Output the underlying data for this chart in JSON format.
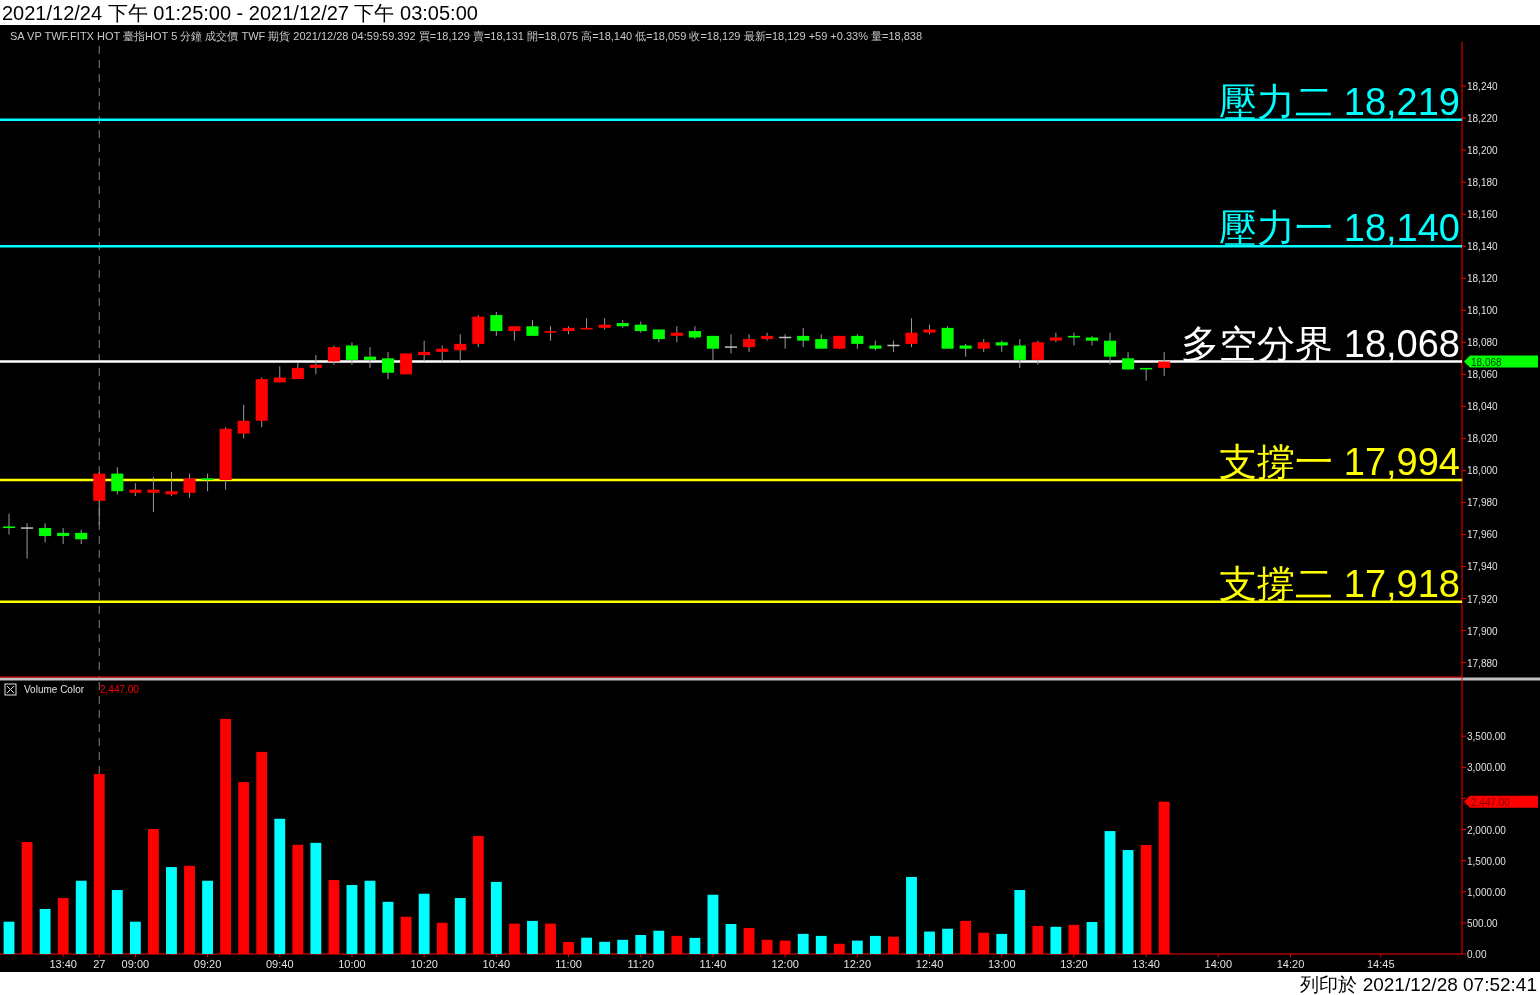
{
  "chart_data": [
    {
      "type": "candlestick",
      "title": "2021/12/24 下午 01:25:00 - 2021/12/27 下午 03:05:00",
      "subtitle": "SA  VP  TWF.FITX HOT  臺指HOT 5 分鐘  成交價  TWF  期貨  2021/12/28 04:59:59.392  買=18,129  賣=18,131  開=18,075  高=18,140  低=18,059  收=18,129  最新=18,129  +59  +0.33%  量=18,838",
      "categories": [
        null,
        null,
        null,
        null,
        null,
        null,
        null,
        null,
        null,
        null,
        null,
        null,
        null,
        null,
        null,
        null,
        null,
        null,
        null,
        null,
        null,
        null,
        null,
        null,
        null,
        null,
        null,
        null,
        null,
        null,
        null,
        null,
        null,
        null,
        null,
        null,
        null,
        null,
        null,
        null,
        null,
        null,
        null,
        null,
        null,
        null,
        null,
        null,
        null,
        null,
        null,
        null,
        null,
        null,
        null,
        null,
        null,
        null,
        null,
        null,
        null,
        null,
        null,
        null,
        null,
        null,
        null,
        null,
        null,
        null,
        null,
        null,
        null,
        null,
        null,
        null,
        null,
        null,
        null,
        null,
        null
      ],
      "ohlc": [
        [
          17965,
          17973,
          17960,
          17964
        ],
        [
          17964,
          17967,
          17945,
          17964
        ],
        [
          17964,
          17967,
          17955,
          17959
        ],
        [
          17961,
          17964,
          17954,
          17959
        ],
        [
          17961,
          17963,
          17954,
          17957
        ],
        [
          17981,
          17999,
          17966,
          17998
        ],
        [
          17998,
          18002,
          17985,
          17987
        ],
        [
          17986,
          17992,
          17984,
          17988
        ],
        [
          17986,
          17996,
          17974,
          17988
        ],
        [
          17985,
          17999,
          17984,
          17987
        ],
        [
          17986,
          17998,
          17983,
          17995
        ],
        [
          17995,
          17998,
          17987,
          17994
        ],
        [
          17994,
          18027,
          17988,
          18026
        ],
        [
          18023,
          18041,
          18020,
          18031
        ],
        [
          18031,
          18058,
          18027,
          18057
        ],
        [
          18055,
          18065,
          18055,
          18058
        ],
        [
          18057,
          18067,
          18057,
          18064
        ],
        [
          18064,
          18072,
          18060,
          18066
        ],
        [
          18068,
          18078,
          18066,
          18077
        ],
        [
          18078,
          18080,
          18066,
          18069
        ],
        [
          18071,
          18077,
          18064,
          18069
        ],
        [
          18070,
          18074,
          18057,
          18061
        ],
        [
          18060,
          18073,
          18060,
          18073
        ],
        [
          18072,
          18081,
          18068,
          18074
        ],
        [
          18074,
          18078,
          18068,
          18076
        ],
        [
          18075,
          18085,
          18068,
          18079
        ],
        [
          18079,
          18097,
          18077,
          18096
        ],
        [
          18097,
          18099,
          18084,
          18087
        ],
        [
          18087,
          18090,
          18081,
          18090
        ],
        [
          18090,
          18094,
          18084,
          18084
        ],
        [
          18086,
          18090,
          18081,
          18087
        ],
        [
          18087,
          18090,
          18085,
          18089
        ],
        [
          18088,
          18095,
          18088,
          18089
        ],
        [
          18089,
          18095,
          18088,
          18091
        ],
        [
          18092,
          18094,
          18089,
          18090
        ],
        [
          18091,
          18093,
          18086,
          18087
        ],
        [
          18088,
          18088,
          18080,
          18082
        ],
        [
          18084,
          18090,
          18080,
          18086
        ],
        [
          18087,
          18090,
          18082,
          18083
        ],
        [
          18084,
          18084,
          18069,
          18076
        ],
        [
          18077,
          18085,
          18073,
          18077
        ],
        [
          18077,
          18085,
          18074,
          18082
        ],
        [
          18082,
          18086,
          18081,
          18084
        ],
        [
          18083,
          18085,
          18076,
          18083
        ],
        [
          18084,
          18089,
          18077,
          18081
        ],
        [
          18082,
          18085,
          18076,
          18076
        ],
        [
          18076,
          18084,
          18076,
          18084
        ],
        [
          18084,
          18085,
          18076,
          18079
        ],
        [
          18078,
          18081,
          18075,
          18076
        ],
        [
          18078,
          18081,
          18074,
          18078
        ],
        [
          18079,
          18095,
          18077,
          18086
        ],
        [
          18086,
          18091,
          18085,
          18088
        ],
        [
          18089,
          18090,
          18076,
          18076
        ],
        [
          18078,
          18079,
          18071,
          18076
        ],
        [
          18076,
          18082,
          18074,
          18080
        ],
        [
          18080,
          18081,
          18074,
          18078
        ],
        [
          18078,
          18082,
          18064,
          18069
        ],
        [
          18069,
          18081,
          18066,
          18080
        ],
        [
          18081,
          18086,
          18080,
          18083
        ],
        [
          18084,
          18086,
          18078,
          18083
        ],
        [
          18083,
          18084,
          18078,
          18081
        ],
        [
          18081,
          18086,
          18066,
          18071
        ],
        [
          18070,
          18074,
          18063,
          18063
        ],
        [
          18064,
          18064,
          18056,
          18063
        ],
        [
          18064,
          18074,
          18059,
          18068
        ],
        null,
        null,
        null,
        null,
        null,
        null,
        null,
        null,
        null,
        null,
        null,
        null,
        null,
        null,
        null,
        null
      ],
      "ylim": [
        17871,
        18265
      ],
      "yticks": [
        {
          "value": 17880,
          "label": "17,880"
        },
        {
          "value": 17900,
          "label": "17,900"
        },
        {
          "value": 17920,
          "label": "17,920"
        },
        {
          "value": 17940,
          "label": "17,940"
        },
        {
          "value": 17960,
          "label": "17,960"
        },
        {
          "value": 17980,
          "label": "17,980"
        },
        {
          "value": 18000,
          "label": "18,000"
        },
        {
          "value": 18020,
          "label": "18,020"
        },
        {
          "value": 18040,
          "label": "18,040"
        },
        {
          "value": 18060,
          "label": "18,060"
        },
        {
          "value": 18080,
          "label": "18,080"
        },
        {
          "value": 18100,
          "label": "18,100"
        },
        {
          "value": 18120,
          "label": "18,120"
        },
        {
          "value": 18140,
          "label": "18,140"
        },
        {
          "value": 18160,
          "label": "18,160"
        },
        {
          "value": 18180,
          "label": "18,180"
        },
        {
          "value": 18200,
          "label": "18,200"
        },
        {
          "value": 18220,
          "label": "18,220"
        },
        {
          "value": 18240,
          "label": "18,240"
        }
      ],
      "ref_lines": [
        {
          "axis": "y",
          "value": 18219,
          "label": "壓力二 18,219",
          "color": "#00ffff"
        },
        {
          "axis": "y",
          "value": 18140,
          "label": "壓力一 18,140",
          "color": "#00ffff"
        },
        {
          "axis": "y",
          "value": 18068,
          "label": "多空分界 18,068",
          "color": "#ffffff"
        },
        {
          "axis": "y",
          "value": 17994,
          "label": "支撐一 17,994",
          "color": "#ffff00"
        },
        {
          "axis": "y",
          "value": 17918,
          "label": "支撐二 17,918",
          "color": "#ffff00"
        },
        {
          "axis": "x",
          "value": "27",
          "color": "#808080",
          "line_style": "dashed"
        }
      ],
      "annotations": [
        "18,068",
        "列印於 2021/12/28 07:52:41"
      ],
      "tick_labels": "y"
    },
    {
      "type": "bar",
      "title": "Volume Color",
      "subtitle": "2,447.00",
      "categories": [
        null,
        null,
        null,
        "13:40",
        null,
        "27",
        null,
        "09:00",
        null,
        null,
        null,
        "09:20",
        null,
        null,
        null,
        "09:40",
        null,
        null,
        null,
        "10:00",
        null,
        null,
        null,
        "10:20",
        null,
        null,
        null,
        "10:40",
        null,
        null,
        null,
        "11:00",
        null,
        null,
        null,
        "11:20",
        null,
        null,
        null,
        "11:40",
        null,
        null,
        null,
        "12:00",
        null,
        null,
        null,
        "12:20",
        null,
        null,
        null,
        "12:40",
        null,
        null,
        null,
        "13:00",
        null,
        null,
        null,
        "13:20",
        null,
        null,
        null,
        "13:40",
        null,
        null,
        null,
        "14:00",
        null,
        null,
        null,
        "14:20",
        null,
        null,
        null,
        null,
        "14:45",
        null,
        null,
        null,
        null
      ],
      "values": [
        519,
        1799,
        723,
        899,
        1177,
        2891,
        1028,
        519,
        2008,
        1397,
        1416,
        1177,
        3777,
        2762,
        3247,
        2173,
        1755,
        1786,
        1188,
        1108,
        1177,
        838,
        599,
        968,
        501,
        899,
        1895,
        1158,
        488,
        532,
        488,
        193,
        262,
        196,
        228,
        305,
        374,
        291,
        259,
        952,
        482,
        418,
        228,
        215,
        323,
        291,
        164,
        215,
        291,
        278,
        1238,
        361,
        406,
        533,
        342,
        323,
        1028,
        450,
        437,
        469,
        514,
        1975,
        1670,
        1752,
        2447,
        null,
        null,
        null,
        null,
        null,
        null,
        null,
        null,
        null,
        null,
        null,
        null,
        null,
        null,
        null,
        null
      ],
      "colors": [
        "#00ffff",
        "#ff0000",
        "#00ffff",
        "#ff0000",
        "#00ffff",
        "#ff0000",
        "#00ffff",
        "#00ffff",
        "#ff0000",
        "#00ffff",
        "#ff0000",
        "#00ffff",
        "#ff0000",
        "#ff0000",
        "#ff0000",
        "#00ffff",
        "#ff0000",
        "#00ffff",
        "#ff0000",
        "#00ffff",
        "#00ffff",
        "#00ffff",
        "#ff0000",
        "#00ffff",
        "#ff0000",
        "#00ffff",
        "#ff0000",
        "#00ffff",
        "#ff0000",
        "#00ffff",
        "#ff0000",
        "#ff0000",
        "#00ffff",
        "#00ffff",
        "#00ffff",
        "#00ffff",
        "#00ffff",
        "#ff0000",
        "#00ffff",
        "#00ffff",
        "#00ffff",
        "#ff0000",
        "#ff0000",
        "#ff0000",
        "#00ffff",
        "#00ffff",
        "#ff0000",
        "#00ffff",
        "#00ffff",
        "#ff0000",
        "#00ffff",
        "#00ffff",
        "#00ffff",
        "#ff0000",
        "#ff0000",
        "#00ffff",
        "#00ffff",
        "#ff0000",
        "#00ffff",
        "#ff0000",
        "#00ffff",
        "#00ffff",
        "#00ffff",
        "#ff0000",
        "#ff0000",
        null,
        null,
        null,
        null,
        null,
        null,
        null,
        null,
        null,
        null,
        null,
        null,
        null,
        null,
        null,
        null
      ],
      "ylim": [
        0,
        4370
      ],
      "yticks": [
        {
          "value": 0,
          "label": "0.00"
        },
        {
          "value": 500,
          "label": "500.00"
        },
        {
          "value": 1000,
          "label": "1,000.00"
        },
        {
          "value": 1500,
          "label": "1,500.00"
        },
        {
          "value": 2000,
          "label": "2,000.00"
        },
        {
          "value": 2500,
          "label": null
        },
        {
          "value": 3000,
          "label": "3,000.00"
        },
        {
          "value": 3500,
          "label": "3,500.00"
        }
      ],
      "ref_lines": [
        {
          "axis": "x",
          "value": "27",
          "color": "#808080",
          "line_style": "dashed"
        }
      ],
      "annotations": [
        "2,447.00"
      ]
    }
  ]
}
